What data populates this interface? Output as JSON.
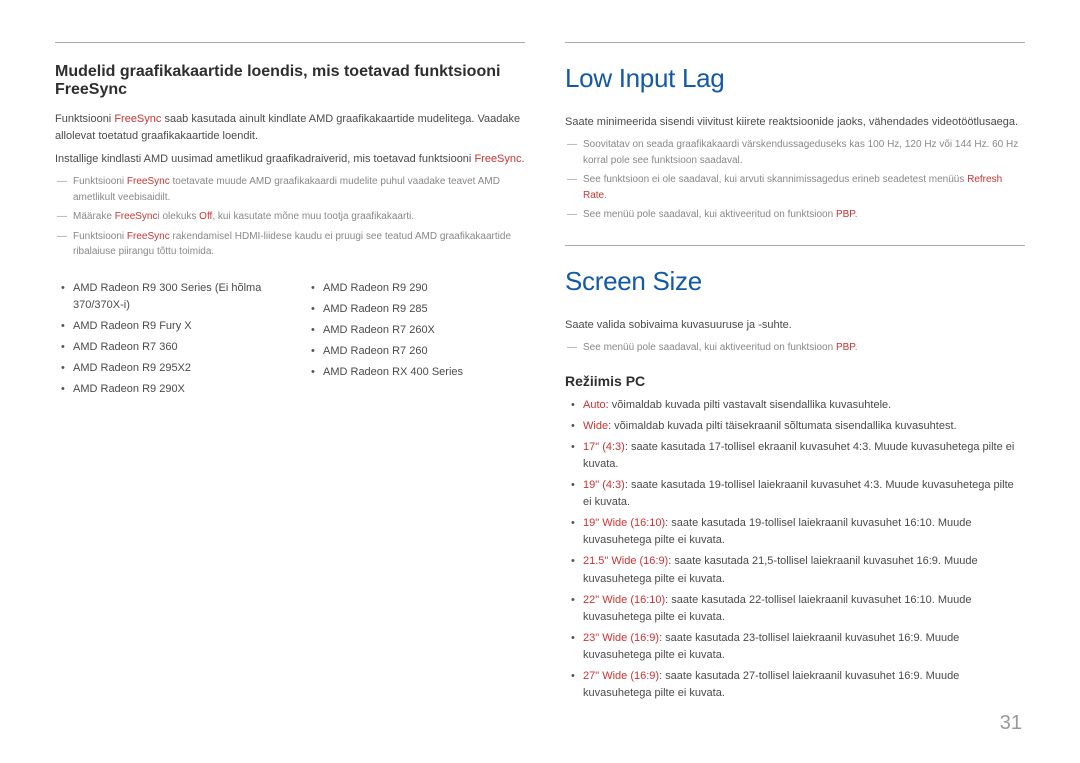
{
  "colors": {
    "heading_blue": "#1259a8",
    "body_text": "#4a4a4a",
    "note_text": "#888888",
    "accent_red": "#cc3333",
    "rule_gray": "#aaaaaa"
  },
  "page_number": "31",
  "left": {
    "subsection_title": "Mudelid graafikakaartide loendis, mis toetavad funktsiooni FreeSync",
    "body1_a": "Funktsiooni ",
    "body1_red": "FreeSync",
    "body1_b": " saab kasutada ainult kindlate AMD graafikakaartide mudelitega. Vaadake allolevat toetatud graafikakaartide loendit.",
    "body2_a": "Installige kindlasti AMD uusimad ametlikud graafikadraiverid, mis toetavad funktsiooni ",
    "body2_red": "FreeSync",
    "body2_b": ".",
    "note1_a": "Funktsiooni ",
    "note1_red": "FreeSync",
    "note1_b": " toetavate muude AMD graafikakaardi mudelite puhul vaadake teavet AMD ametlikult veebisaidilt.",
    "note2_a": "Määrake ",
    "note2_red": "FreeSync",
    "note2_b": "i olekuks ",
    "note2_red2": "Off",
    "note2_c": ", kui kasutate mõne muu tootja graafikakaarti.",
    "note3_a": "Funktsiooni ",
    "note3_red": "FreeSync",
    "note3_b": " rakendamisel HDMI-liidese kaudu ei pruugi see teatud AMD graafikakaartide ribalaiuse piirangu tõttu toimida.",
    "cards_left": [
      "AMD Radeon R9 300 Series (Ei hõlma 370/370X-i)",
      "AMD Radeon R9 Fury X",
      "AMD Radeon R7 360",
      "AMD Radeon R9 295X2",
      "AMD Radeon R9 290X"
    ],
    "cards_right": [
      "AMD Radeon R9 290",
      "AMD Radeon R9 285",
      "AMD Radeon R7 260X",
      "AMD Radeon R7 260",
      "AMD Radeon RX 400 Series"
    ]
  },
  "right": {
    "section1_title": "Low Input Lag",
    "s1_body": "Saate minimeerida sisendi viivitust kiirete reaktsioonide jaoks, vähendades videotöötlusaega.",
    "s1_note1": "Soovitatav on seada graafikakaardi värskendussageduseks kas 100 Hz, 120 Hz või 144 Hz. 60 Hz korral pole see funktsioon saadaval.",
    "s1_note2_a": "See funktsioon ei ole saadaval, kui arvuti skannimissagedus erineb seadetest menüüs ",
    "s1_note2_red": "Refresh Rate",
    "s1_note2_b": ".",
    "s1_note3_a": "See menüü pole saadaval, kui aktiveeritud on funktsioon ",
    "s1_note3_red": "PBP",
    "s1_note3_b": ".",
    "section2_title": "Screen Size",
    "s2_body": "Saate valida sobivaima kuvasuuruse ja -suhte.",
    "s2_note1_a": "See menüü pole saadaval, kui aktiveeritud on funktsioon ",
    "s2_note1_red": "PBP",
    "s2_note1_b": ".",
    "pc_title": "Režiimis PC",
    "pc_items": [
      {
        "red": "Auto",
        "text": ": võimaldab kuvada pilti vastavalt sisendallika kuvasuhtele."
      },
      {
        "red": "Wide",
        "text": ": võimaldab kuvada pilti täisekraanil sõltumata sisendallika kuvasuhtest."
      },
      {
        "red": "17\" (4:3)",
        "text": ": saate kasutada 17-tollisel ekraanil kuvasuhet 4:3. Muude kuvasuhetega pilte ei kuvata."
      },
      {
        "red": "19\" (4:3)",
        "text": ": saate kasutada 19-tollisel laiekraanil kuvasuhet 4:3. Muude kuvasuhetega pilte ei kuvata."
      },
      {
        "red": "19\" Wide (16:10)",
        "text": ": saate kasutada 19-tollisel laiekraanil kuvasuhet 16:10. Muude kuvasuhetega pilte ei kuvata."
      },
      {
        "red": "21.5\" Wide (16:9)",
        "text": ": saate kasutada 21,5-tollisel laiekraanil kuvasuhet 16:9. Muude kuvasuhetega pilte ei kuvata."
      },
      {
        "red": "22\" Wide (16:10)",
        "text": ": saate kasutada 22-tollisel laiekraanil kuvasuhet 16:10. Muude kuvasuhetega pilte ei kuvata."
      },
      {
        "red": "23\" Wide (16:9)",
        "text": ": saate kasutada 23-tollisel laiekraanil kuvasuhet 16:9. Muude kuvasuhetega pilte ei kuvata."
      },
      {
        "red": "27\" Wide (16:9)",
        "text": ": saate kasutada 27-tollisel laiekraanil kuvasuhet 16:9. Muude kuvasuhetega pilte ei kuvata."
      }
    ]
  }
}
